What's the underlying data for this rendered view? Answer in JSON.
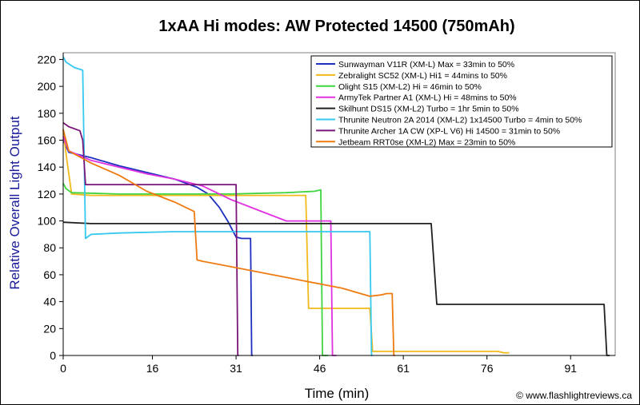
{
  "chart_data": {
    "type": "line",
    "title": "1xAA Hi modes: AW Protected 14500 (750mAh)",
    "xlabel": "Time (min)",
    "ylabel": "Relative Overall Light Output",
    "xlim": [
      0,
      99
    ],
    "ylim": [
      0,
      225
    ],
    "xticks": [
      0,
      16,
      31,
      46,
      61,
      76,
      91
    ],
    "yticks": [
      0,
      20,
      40,
      60,
      80,
      100,
      120,
      140,
      160,
      180,
      200,
      220
    ],
    "legend_position": "top-right",
    "grid": false,
    "credit": "© www.flashlightreviews.ca",
    "series": [
      {
        "name": "Sunwayman V11R (XM-L) Max = 33min to 50%",
        "color": "#1f2fbf",
        "x": [
          0,
          1,
          5,
          10,
          15,
          20,
          24,
          26,
          28,
          29.5,
          31,
          32,
          33,
          33.6,
          33.8,
          34
        ],
        "y": [
          160,
          151,
          147,
          141,
          136,
          131,
          125,
          120,
          110,
          100,
          88,
          87,
          87,
          87,
          0,
          0
        ]
      },
      {
        "name": "Zebralight SC52 (XM-L) Hi1 = 44mins to 50%",
        "color": "#f2b91a",
        "x": [
          0,
          0.5,
          1.5,
          5,
          20,
          35,
          43.5,
          44,
          46,
          55,
          55.5,
          78,
          79,
          80
        ],
        "y": [
          168,
          150,
          120,
          119,
          119,
          119,
          119,
          35,
          35,
          35,
          3,
          3,
          2,
          2
        ]
      },
      {
        "name": "Olight S15 (XM-L2) Hi = 46min to 50%",
        "color": "#3fd43f",
        "x": [
          0,
          0.5,
          1.5,
          10,
          20,
          30,
          40,
          45,
          46.2,
          46.5,
          47.5
        ],
        "y": [
          128,
          124,
          121,
          120,
          120,
          120,
          121,
          122,
          123,
          0,
          0
        ]
      },
      {
        "name": "ArmyTek Partner A1 (XM-L) Hi = 48mins to 50%",
        "color": "#e030e0",
        "x": [
          0,
          1,
          5,
          10,
          15,
          20,
          25,
          30,
          35,
          40,
          48,
          48.3,
          49
        ],
        "y": [
          163,
          152,
          145,
          140,
          135,
          131,
          126,
          116,
          108,
          100,
          100,
          0,
          0
        ]
      },
      {
        "name": "Skilhunt DS15 (XM-L2) Turbo = 1hr 5min to 50%",
        "color": "#202020",
        "x": [
          0,
          5,
          20,
          40,
          60,
          66,
          67,
          80,
          90,
          97,
          97.5,
          98
        ],
        "y": [
          99,
          98,
          98,
          98,
          98,
          98,
          38,
          38,
          38,
          38,
          0,
          0
        ]
      },
      {
        "name": "Thrunite Neutron 2A 2014 (XM-L2) 1x14500 Turbo = 4min to 50%",
        "color": "#35c8f0",
        "x": [
          0,
          0.5,
          2,
          3.5,
          4,
          5,
          10,
          20,
          30,
          40,
          50,
          55,
          55.3,
          55.5
        ],
        "y": [
          222,
          218,
          214,
          212,
          87,
          90,
          91,
          92,
          92,
          92,
          92,
          92,
          0,
          0
        ]
      },
      {
        "name": "Thrunite Archer 1A CW (XP-L V6) Hi 14500 = 31min to 50%",
        "color": "#7a167a",
        "x": [
          0,
          1,
          3,
          3.5,
          4,
          10,
          20,
          30,
          31,
          31.3,
          31.5
        ],
        "y": [
          173,
          170,
          167,
          160,
          127,
          127,
          127,
          127,
          127,
          0,
          0
        ]
      },
      {
        "name": "Jetbeam RRT0se (XM-L2) Max = 23min to 50%",
        "color": "#ef7b10",
        "x": [
          0,
          1,
          5,
          10,
          15,
          20,
          23.5,
          24,
          25,
          30,
          40,
          50,
          55,
          57,
          58,
          59,
          59.3,
          59.5
        ],
        "y": [
          168,
          152,
          143,
          134,
          122,
          114,
          107,
          71,
          70,
          66,
          58,
          50,
          44,
          45,
          46,
          46,
          0,
          0
        ]
      }
    ]
  }
}
